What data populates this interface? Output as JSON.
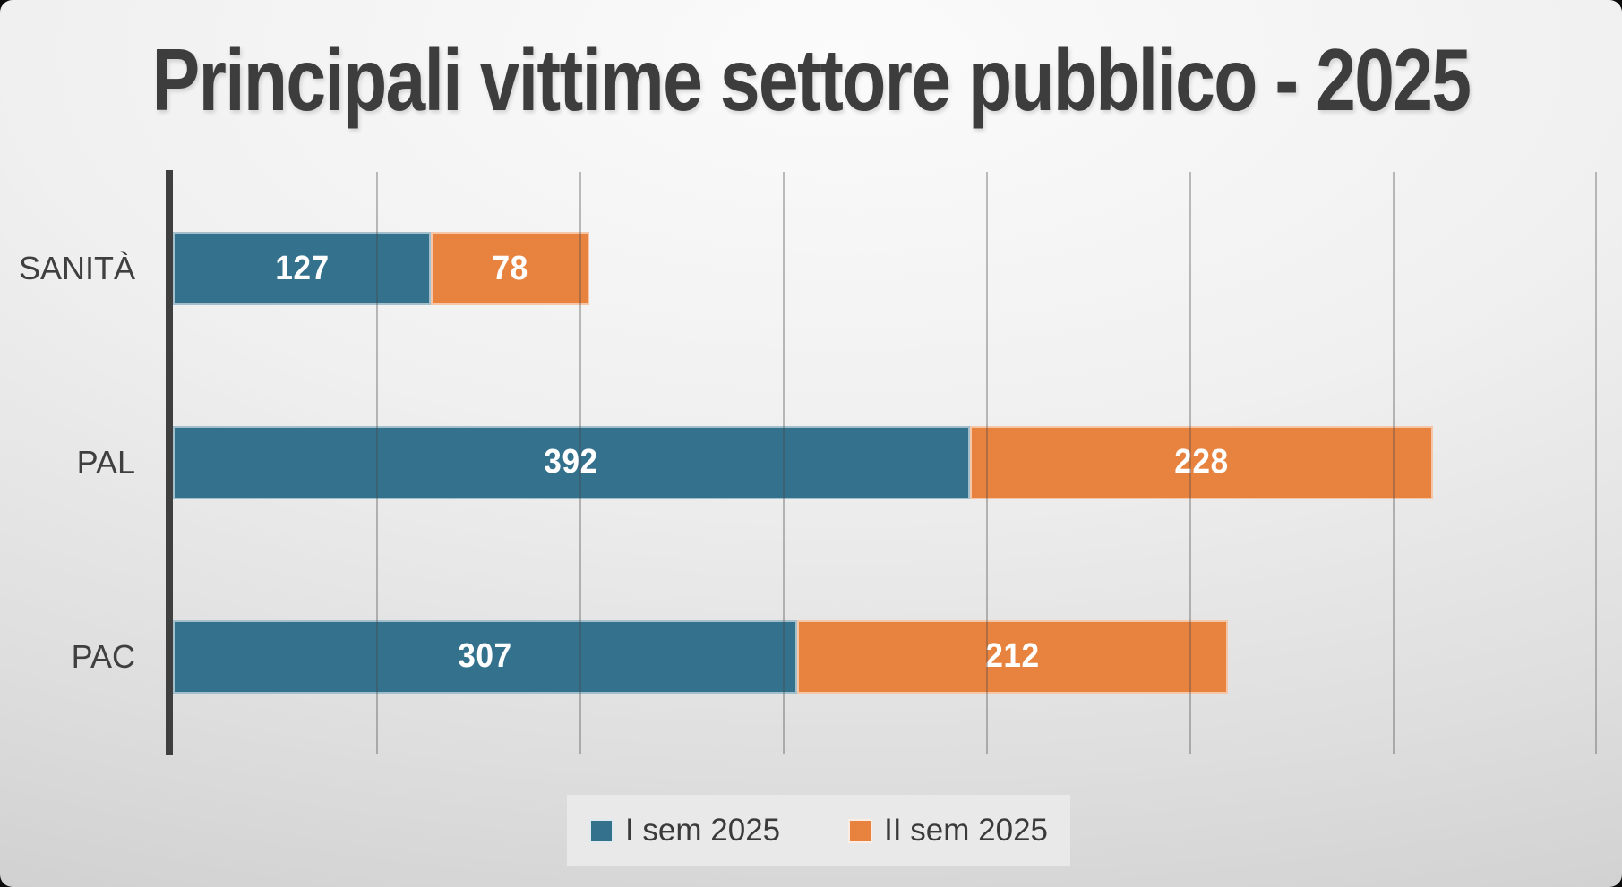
{
  "chart_data": {
    "type": "bar",
    "orientation": "horizontal",
    "stacked": true,
    "title": "Principali vittime settore pubblico - 2025",
    "categories": [
      "SANITÀ",
      "PAL",
      "PAC"
    ],
    "series": [
      {
        "name": "I sem 2025",
        "color": "#33718D",
        "values": [
          127,
          392,
          307
        ]
      },
      {
        "name": "II sem 2025",
        "color": "#E8823F",
        "values": [
          78,
          228,
          212
        ]
      }
    ],
    "totals": [
      205,
      620,
      519
    ],
    "xlim": [
      0,
      713
    ],
    "gridline_interval": 100,
    "grid": true,
    "data_labels": true,
    "legend_position": "bottom",
    "colors": {
      "axis_line": "#3f3f3f",
      "gridline": "#a6a6a6",
      "category_text": "#3f3f3f",
      "title_text": "#3d3d3d",
      "value_text": "#ffffff",
      "legend_background": "#e9e9e9",
      "legend_text": "#3a3a3a"
    }
  }
}
